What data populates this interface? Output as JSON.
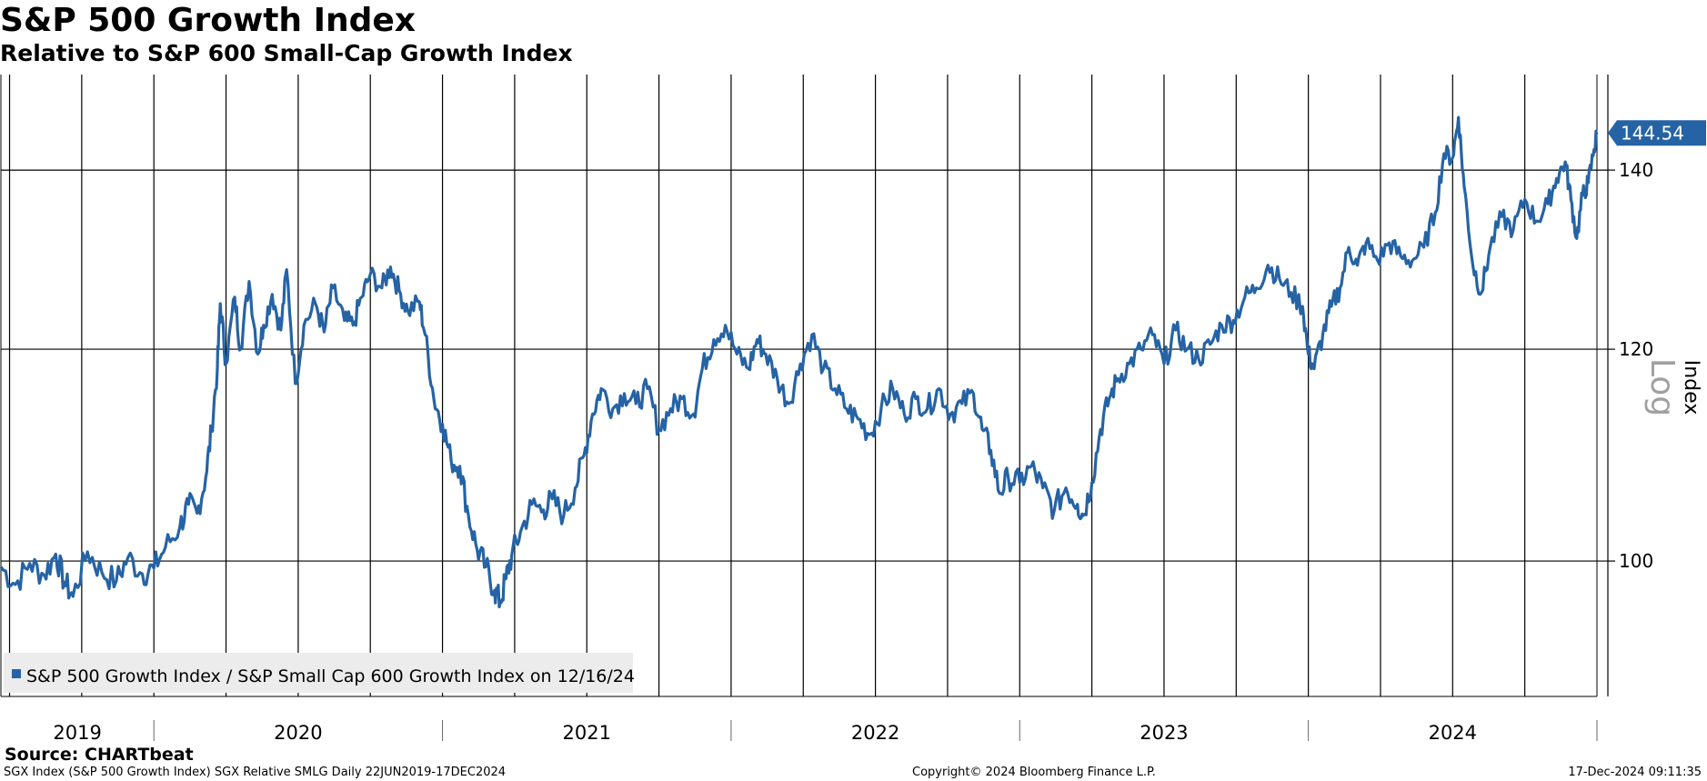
{
  "header": {
    "title": "S&P 500 Growth Index",
    "subtitle": "Relative to S&P 600 Small-Cap Growth Index"
  },
  "footer": {
    "source": "Source: CHARTbeat",
    "left": "SGX Index (S&P 500 Growth Index) SGX Relative SMLG  Daily 22JUN2019-17DEC2024",
    "center": "Copyright© 2024 Bloomberg Finance L.P.",
    "right": "17-Dec-2024 09:11:35"
  },
  "colors": {
    "series": "#2563a5",
    "grid": "#000000",
    "legend_bg": "#ececec",
    "axis_text": "#000000",
    "log_text": "#a0a0a0"
  },
  "chart_data": {
    "type": "line",
    "title": "S&P 500 Growth Index",
    "subtitle": "Relative to S&P 600 Small-Cap Growth Index",
    "xlabel": "",
    "ylabel": "Index",
    "scale_label": "Log",
    "x_range": [
      "2019-06-22",
      "2024-12-17"
    ],
    "ylim": [
      89,
      152
    ],
    "y_ticks": [
      100,
      120,
      140
    ],
    "year_labels": [
      "2019",
      "2020",
      "2021",
      "2022",
      "2023",
      "2024"
    ],
    "last_value": 144.54,
    "last_value_label": "144.54",
    "legend": "S&P 500 Growth Index / S&P Small Cap 600 Growth Index on 12/16/24",
    "series": [
      {
        "name": "S&P 500 Growth Index / S&P Small Cap 600 Growth Index",
        "points": [
          [
            2019.47,
            99.5
          ],
          [
            2019.52,
            98.0
          ],
          [
            2019.57,
            99.8
          ],
          [
            2019.62,
            98.8
          ],
          [
            2019.66,
            100.6
          ],
          [
            2019.69,
            98.2
          ],
          [
            2019.72,
            97.0
          ],
          [
            2019.77,
            100.8
          ],
          [
            2019.82,
            99.0
          ],
          [
            2019.87,
            98.3
          ],
          [
            2019.91,
            100.3
          ],
          [
            2019.96,
            98.9
          ],
          [
            2020.0,
            99.4
          ],
          [
            2020.04,
            101.2
          ],
          [
            2020.09,
            103.0
          ],
          [
            2020.12,
            105.0
          ],
          [
            2020.15,
            104.2
          ],
          [
            2020.18,
            107.5
          ],
          [
            2020.2,
            112.0
          ],
          [
            2020.22,
            118.0
          ],
          [
            2020.23,
            124.8
          ],
          [
            2020.25,
            118.5
          ],
          [
            2020.28,
            125.5
          ],
          [
            2020.3,
            120.0
          ],
          [
            2020.33,
            127.2
          ],
          [
            2020.36,
            119.5
          ],
          [
            2020.38,
            122.5
          ],
          [
            2020.41,
            125.8
          ],
          [
            2020.44,
            122.0
          ],
          [
            2020.46,
            128.5
          ],
          [
            2020.49,
            116.5
          ],
          [
            2020.52,
            122.5
          ],
          [
            2020.56,
            124.8
          ],
          [
            2020.59,
            121.8
          ],
          [
            2020.62,
            126.5
          ],
          [
            2020.66,
            123.0
          ],
          [
            2020.69,
            122.5
          ],
          [
            2020.72,
            125.5
          ],
          [
            2020.75,
            128.0
          ],
          [
            2020.79,
            126.5
          ],
          [
            2020.82,
            128.8
          ],
          [
            2020.85,
            126.2
          ],
          [
            2020.88,
            124.0
          ],
          [
            2020.92,
            125.0
          ],
          [
            2020.94,
            121.5
          ],
          [
            2020.97,
            115.0
          ],
          [
            2021.0,
            112.5
          ],
          [
            2021.03,
            109.0
          ],
          [
            2021.06,
            108.5
          ],
          [
            2021.09,
            104.0
          ],
          [
            2021.12,
            101.0
          ],
          [
            2021.15,
            99.5
          ],
          [
            2021.18,
            97.5
          ],
          [
            2021.2,
            96.5
          ],
          [
            2021.22,
            98.5
          ],
          [
            2021.24,
            100.5
          ],
          [
            2021.27,
            102.5
          ],
          [
            2021.31,
            105.0
          ],
          [
            2021.35,
            104.5
          ],
          [
            2021.38,
            105.5
          ],
          [
            2021.42,
            104.0
          ],
          [
            2021.46,
            106.5
          ],
          [
            2021.49,
            109.5
          ],
          [
            2021.52,
            113.5
          ],
          [
            2021.55,
            116.0
          ],
          [
            2021.59,
            114.0
          ],
          [
            2021.63,
            115.5
          ],
          [
            2021.67,
            114.5
          ],
          [
            2021.71,
            116.0
          ],
          [
            2021.75,
            112.0
          ],
          [
            2021.79,
            114.0
          ],
          [
            2021.83,
            115.0
          ],
          [
            2021.87,
            113.5
          ],
          [
            2021.9,
            118.0
          ],
          [
            2021.94,
            121.0
          ],
          [
            2021.98,
            122.5
          ],
          [
            2022.02,
            119.5
          ],
          [
            2022.06,
            118.0
          ],
          [
            2022.09,
            121.0
          ],
          [
            2022.12,
            119.5
          ],
          [
            2022.16,
            117.0
          ],
          [
            2022.2,
            114.5
          ],
          [
            2022.24,
            118.5
          ],
          [
            2022.28,
            121.5
          ],
          [
            2022.32,
            118.0
          ],
          [
            2022.36,
            116.0
          ],
          [
            2022.4,
            114.0
          ],
          [
            2022.44,
            113.0
          ],
          [
            2022.48,
            111.5
          ],
          [
            2022.52,
            114.0
          ],
          [
            2022.56,
            116.0
          ],
          [
            2022.6,
            113.5
          ],
          [
            2022.64,
            115.0
          ],
          [
            2022.68,
            114.0
          ],
          [
            2022.72,
            116.0
          ],
          [
            2022.76,
            113.5
          ],
          [
            2022.8,
            114.5
          ],
          [
            2022.84,
            115.5
          ],
          [
            2022.87,
            112.0
          ],
          [
            2022.9,
            110.0
          ],
          [
            2022.93,
            106.0
          ],
          [
            2022.96,
            107.5
          ],
          [
            2023.0,
            107.0
          ],
          [
            2023.04,
            108.5
          ],
          [
            2023.08,
            106.5
          ],
          [
            2023.12,
            104.5
          ],
          [
            2023.16,
            106.5
          ],
          [
            2023.2,
            105.0
          ],
          [
            2023.22,
            104.0
          ],
          [
            2023.25,
            107.0
          ],
          [
            2023.28,
            112.0
          ],
          [
            2023.31,
            115.0
          ],
          [
            2023.34,
            117.0
          ],
          [
            2023.38,
            118.5
          ],
          [
            2023.42,
            120.0
          ],
          [
            2023.46,
            121.5
          ],
          [
            2023.5,
            118.5
          ],
          [
            2023.54,
            122.0
          ],
          [
            2023.58,
            120.0
          ],
          [
            2023.62,
            119.0
          ],
          [
            2023.66,
            120.5
          ],
          [
            2023.7,
            122.5
          ],
          [
            2023.74,
            123.0
          ],
          [
            2023.78,
            125.5
          ],
          [
            2023.82,
            126.5
          ],
          [
            2023.86,
            129.0
          ],
          [
            2023.9,
            127.5
          ],
          [
            2023.94,
            126.0
          ],
          [
            2023.98,
            124.5
          ],
          [
            2024.0,
            119.5
          ],
          [
            2024.02,
            118.0
          ],
          [
            2024.05,
            121.5
          ],
          [
            2024.08,
            124.5
          ],
          [
            2024.11,
            126.5
          ],
          [
            2024.14,
            131.0
          ],
          [
            2024.17,
            129.0
          ],
          [
            2024.2,
            131.5
          ],
          [
            2024.24,
            129.5
          ],
          [
            2024.28,
            131.5
          ],
          [
            2024.32,
            130.0
          ],
          [
            2024.36,
            129.5
          ],
          [
            2024.4,
            131.0
          ],
          [
            2024.44,
            135.0
          ],
          [
            2024.47,
            142.0
          ],
          [
            2024.5,
            141.5
          ],
          [
            2024.52,
            146.5
          ],
          [
            2024.54,
            138.0
          ],
          [
            2024.57,
            129.0
          ],
          [
            2024.6,
            126.0
          ],
          [
            2024.63,
            131.0
          ],
          [
            2024.67,
            134.5
          ],
          [
            2024.71,
            133.0
          ],
          [
            2024.75,
            136.5
          ],
          [
            2024.79,
            134.0
          ],
          [
            2024.83,
            136.0
          ],
          [
            2024.86,
            139.0
          ],
          [
            2024.89,
            141.0
          ],
          [
            2024.91,
            136.5
          ],
          [
            2024.93,
            132.0
          ],
          [
            2024.95,
            137.0
          ],
          [
            2024.97,
            138.5
          ],
          [
            2024.99,
            142.5
          ],
          [
            2025.0,
            144.54
          ]
        ]
      }
    ]
  }
}
